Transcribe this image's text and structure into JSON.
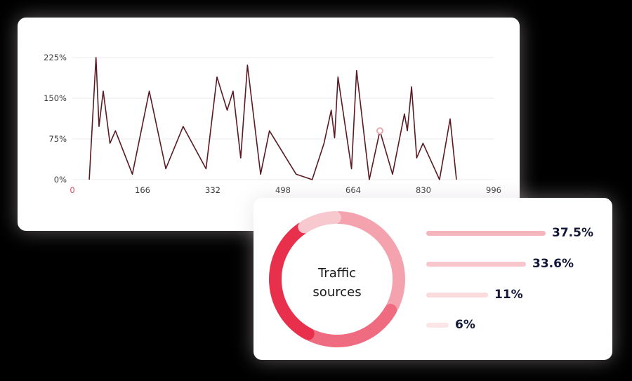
{
  "chart_data": [
    {
      "type": "line",
      "title": "",
      "xlabel": "",
      "ylabel": "",
      "x_ticks": [
        "0",
        "166",
        "332",
        "498",
        "664",
        "830",
        "996"
      ],
      "y_ticks": [
        "225%",
        "150%",
        "75%",
        "0%"
      ],
      "xlim": [
        0,
        996
      ],
      "ylim": [
        0,
        225
      ],
      "grid": true,
      "line_color": "#5a1a24",
      "highlight_color": "#e8a9b2",
      "highlight_index": 35,
      "series": [
        {
          "x": [
            40,
            56,
            63,
            73,
            89,
            102,
            142,
            182,
            221,
            262,
            316,
            342,
            366,
            380,
            398,
            414,
            445,
            466,
            529,
            567,
            595,
            612,
            620,
            628,
            660,
            672,
            702,
            727,
            757,
            785,
            792,
            802,
            814,
            829,
            868,
            893,
            908
          ],
          "y": [
            0,
            225,
            98,
            163,
            67,
            90,
            10,
            163,
            20,
            98,
            20,
            189,
            128,
            163,
            40,
            211,
            10,
            90,
            10,
            0,
            67,
            128,
            77,
            189,
            20,
            201,
            0,
            90,
            10,
            121,
            90,
            171,
            40,
            67,
            0,
            112,
            0
          ],
          "values_note": ""
        }
      ]
    },
    {
      "type": "pie",
      "title": "Traffic sources",
      "segments": [
        {
          "label": "37.5%",
          "value": 37.5,
          "color": "#f4a2ae"
        },
        {
          "label": "33.6%",
          "value": 33.6,
          "color": "#ee6b80"
        },
        {
          "label": "11%",
          "value": 11,
          "color": "#e8304c"
        },
        {
          "label": "6%",
          "value": 6,
          "color": "#f8c8cf"
        }
      ]
    }
  ],
  "donut": {
    "center_line1": "Traffic",
    "center_line2": "sources"
  },
  "legend": [
    {
      "label": "37.5%",
      "value": 37.5,
      "color": "#f6b5bd"
    },
    {
      "label": "33.6%",
      "value": 33.6,
      "color": "#f8c6cc"
    },
    {
      "label": "11%",
      "value": 11,
      "color": "#fadadd"
    },
    {
      "label": "6%",
      "value": 6,
      "color": "#fbe5e7"
    }
  ]
}
